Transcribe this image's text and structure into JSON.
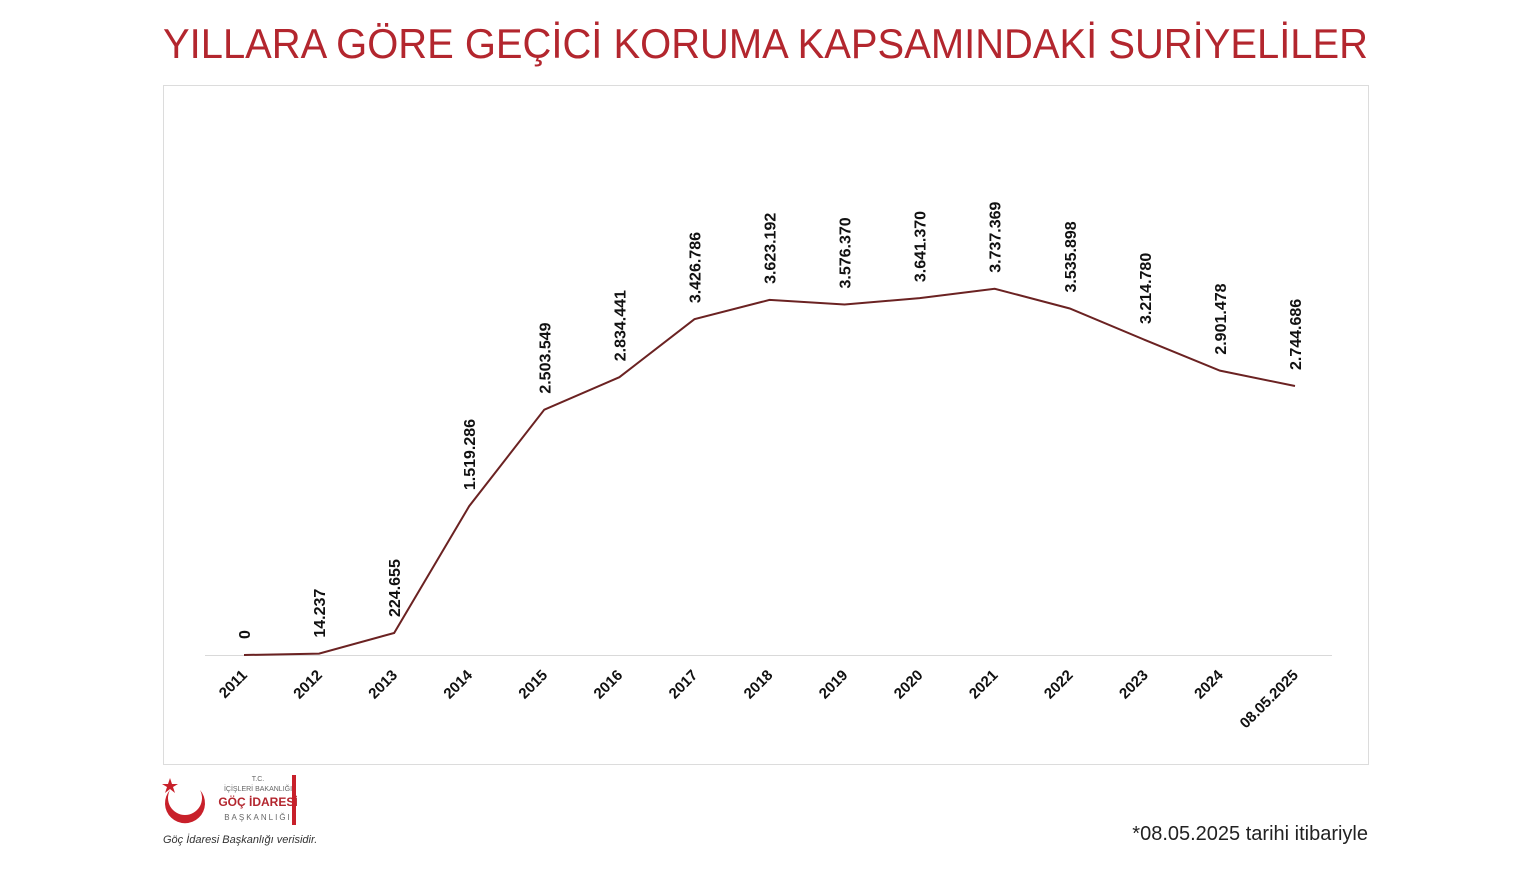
{
  "chart_data": {
    "type": "line",
    "title": "YILLARA GÖRE GEÇİCİ KORUMA KAPSAMINDAKİ SURİYELİLER",
    "categories": [
      "2011",
      "2012",
      "2013",
      "2014",
      "2015",
      "2016",
      "2017",
      "2018",
      "2019",
      "2020",
      "2021",
      "2022",
      "2023",
      "2024",
      "08.05.2025"
    ],
    "values": [
      0,
      14237,
      224655,
      1519286,
      2503549,
      2834441,
      3426786,
      3623192,
      3576370,
      3641370,
      3737369,
      3535898,
      3214780,
      2901478,
      2744686
    ],
    "value_labels": [
      "0",
      "14.237",
      "224.655",
      "1.519.286",
      "2.503.549",
      "2.834.441",
      "3.426.786",
      "3.623.192",
      "3.576.370",
      "3.641.370",
      "3.737.369",
      "3.535.898",
      "3.214.780",
      "2.901.478",
      "2.744.686"
    ],
    "color": "#6b2222",
    "ylim": [
      0,
      4000000
    ]
  },
  "note": "*08.05.2025 tarihi itibariyle",
  "source": "Göç İdaresi Başkanlığı verisidir.",
  "logo": {
    "line1": "T.C.",
    "line2": "İÇİŞLERİ BAKANLIĞI",
    "line3": "GÖÇ İDARESİ",
    "line4": "BAŞKANLIĞI"
  }
}
